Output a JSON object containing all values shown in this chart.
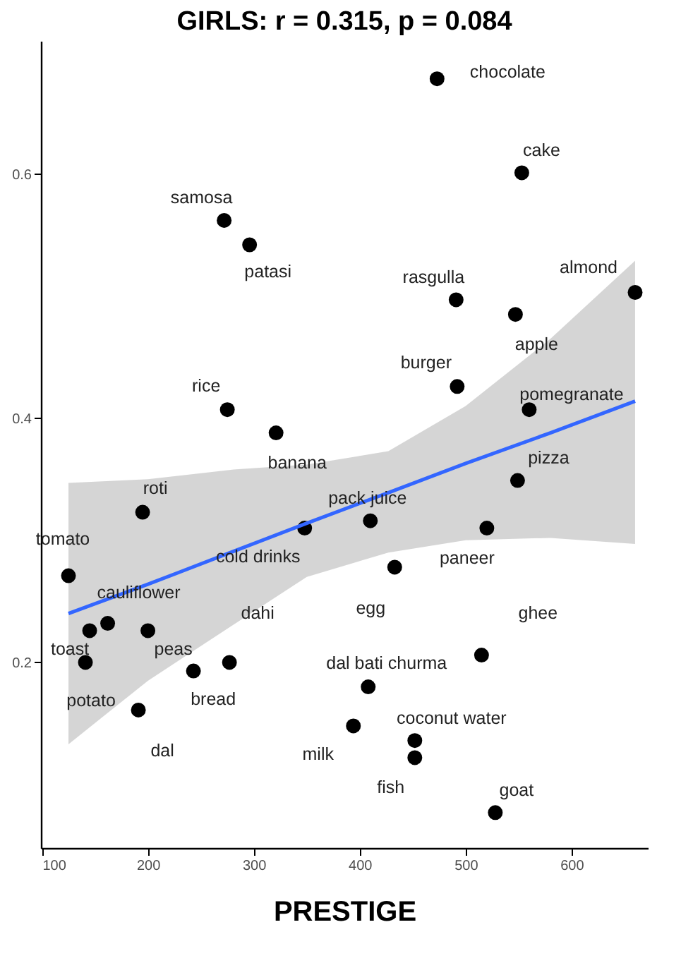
{
  "chart_data": {
    "type": "scatter",
    "title": "GIRLS: r = 0.315, p = 0.084",
    "xlabel": "PRESTIGE",
    "xlim": [
      99,
      672
    ],
    "ylim": [
      0.048,
      0.709
    ],
    "xticks": [
      100,
      200,
      300,
      400,
      500,
      600
    ],
    "yticks": [
      0.2,
      0.4,
      0.6
    ],
    "grid": false,
    "marker": "circle",
    "series": [
      {
        "type": "scatter",
        "color": "#000000",
        "x": [
          473,
          553,
          491,
          547,
          660,
          492,
          560,
          272,
          296,
          275,
          321,
          195,
          348,
          410,
          125,
          162,
          145,
          200,
          141,
          243,
          277,
          191,
          408,
          394,
          433,
          520,
          549,
          515,
          452,
          452,
          528
        ],
        "values": [
          0.678,
          0.601,
          0.497,
          0.485,
          0.503,
          0.426,
          0.407,
          0.562,
          0.542,
          0.407,
          0.388,
          0.323,
          0.31,
          0.316,
          0.271,
          0.232,
          0.226,
          0.226,
          0.2,
          0.193,
          0.2,
          0.161,
          0.18,
          0.148,
          0.278,
          0.31,
          0.349,
          0.206,
          0.136,
          0.122,
          0.077
        ]
      },
      {
        "type": "line",
        "color": "#3366ff",
        "line_style": "solid",
        "marker": "none",
        "x": [
          125,
          200,
          281,
          350,
          427,
          500,
          580,
          660
        ],
        "values": [
          0.24,
          0.264,
          0.291,
          0.314,
          0.339,
          0.363,
          0.388,
          0.414
        ],
        "lower": [
          0.133,
          0.185,
          0.231,
          0.27,
          0.29,
          0.3,
          0.302,
          0.297
        ],
        "upper": [
          0.347,
          0.35,
          0.358,
          0.362,
          0.373,
          0.41,
          0.465,
          0.529
        ]
      }
    ],
    "annotations": [
      {
        "text": "chocolate",
        "x": 473,
        "y": 0.678
      },
      {
        "text": "cake",
        "x": 553,
        "y": 0.601
      },
      {
        "text": "rasgulla",
        "x": 491,
        "y": 0.497
      },
      {
        "text": "apple",
        "x": 547,
        "y": 0.485
      },
      {
        "text": "almond",
        "x": 660,
        "y": 0.503
      },
      {
        "text": "burger",
        "x": 492,
        "y": 0.426
      },
      {
        "text": "pomegranate",
        "x": 560,
        "y": 0.407
      },
      {
        "text": "samosa",
        "x": 272,
        "y": 0.562
      },
      {
        "text": "patasi",
        "x": 296,
        "y": 0.542
      },
      {
        "text": "rice",
        "x": 275,
        "y": 0.407
      },
      {
        "text": "banana",
        "x": 321,
        "y": 0.388
      },
      {
        "text": "roti",
        "x": 195,
        "y": 0.323
      },
      {
        "text": "cold drinks",
        "x": 348,
        "y": 0.31
      },
      {
        "text": "pack juice",
        "x": 410,
        "y": 0.316
      },
      {
        "text": "tomato",
        "x": 125,
        "y": 0.271
      },
      {
        "text": "cauliflower",
        "x": 162,
        "y": 0.232
      },
      {
        "text": "toast",
        "x": 145,
        "y": 0.226
      },
      {
        "text": "peas",
        "x": 200,
        "y": 0.226
      },
      {
        "text": "potato",
        "x": 141,
        "y": 0.2
      },
      {
        "text": "bread",
        "x": 243,
        "y": 0.193
      },
      {
        "text": "dahi",
        "x": 277,
        "y": 0.2
      },
      {
        "text": "dal",
        "x": 191,
        "y": 0.161
      },
      {
        "text": "dal bati churma",
        "x": 408,
        "y": 0.18
      },
      {
        "text": "milk",
        "x": 394,
        "y": 0.148
      },
      {
        "text": "egg",
        "x": 433,
        "y": 0.278
      },
      {
        "text": "paneer",
        "x": 520,
        "y": 0.31
      },
      {
        "text": "pizza",
        "x": 549,
        "y": 0.349
      },
      {
        "text": "ghee",
        "x": 515,
        "y": 0.206
      },
      {
        "text": "coconut water",
        "x": 452,
        "y": 0.136
      },
      {
        "text": "fish",
        "x": 452,
        "y": 0.122
      },
      {
        "text": "goat",
        "x": 528,
        "y": 0.077
      }
    ]
  }
}
